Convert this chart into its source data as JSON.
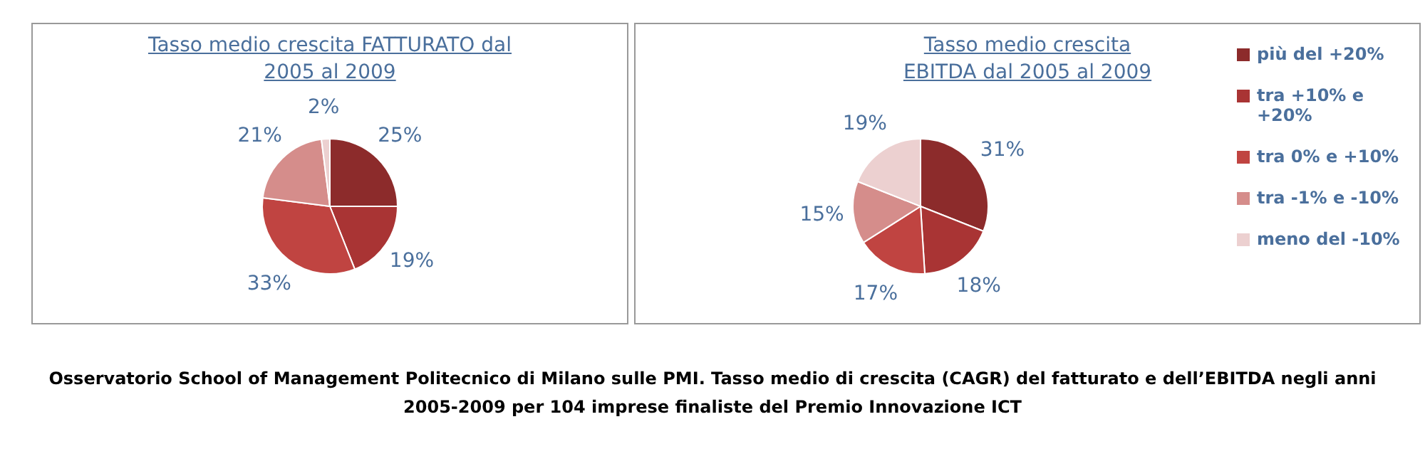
{
  "chart_data": [
    {
      "type": "pie",
      "title": "Tasso medio crescita FATTURATO dal 2005 al 2009",
      "categories": [
        null,
        null,
        null,
        null,
        null
      ],
      "values": [
        25,
        19,
        33,
        21,
        2
      ],
      "value_labels": [
        "25%",
        "19%",
        "33%",
        "21%",
        "2%"
      ],
      "colors": [
        "#8c2b2b",
        "#a93434",
        "#c04441",
        "#d58d8b",
        "#ecd0d0"
      ],
      "legend": false
    },
    {
      "type": "pie",
      "title": "Tasso medio crescita EBITDA dal 2005 al 2009",
      "categories": [
        "più del +20%",
        "tra +10% e +20%",
        "tra 0% e +10%",
        "tra -1% e -10%",
        "meno del -10%"
      ],
      "values": [
        31,
        18,
        17,
        15,
        19
      ],
      "value_labels": [
        "31%",
        "18%",
        "17%",
        "15%",
        "19%"
      ],
      "colors": [
        "#8c2b2b",
        "#a93434",
        "#c04441",
        "#d58d8b",
        "#ecd0d0"
      ],
      "legend": "right",
      "annotations": [
        "Osservatorio School of Management Politecnico di Milano sulle PMI. Tasso medio di crescita (CAGR) del fatturato e dell’EBITDA negli anni 2005-2009 per 104 imprese finaliste del Premio Innovazione ICT"
      ]
    }
  ]
}
